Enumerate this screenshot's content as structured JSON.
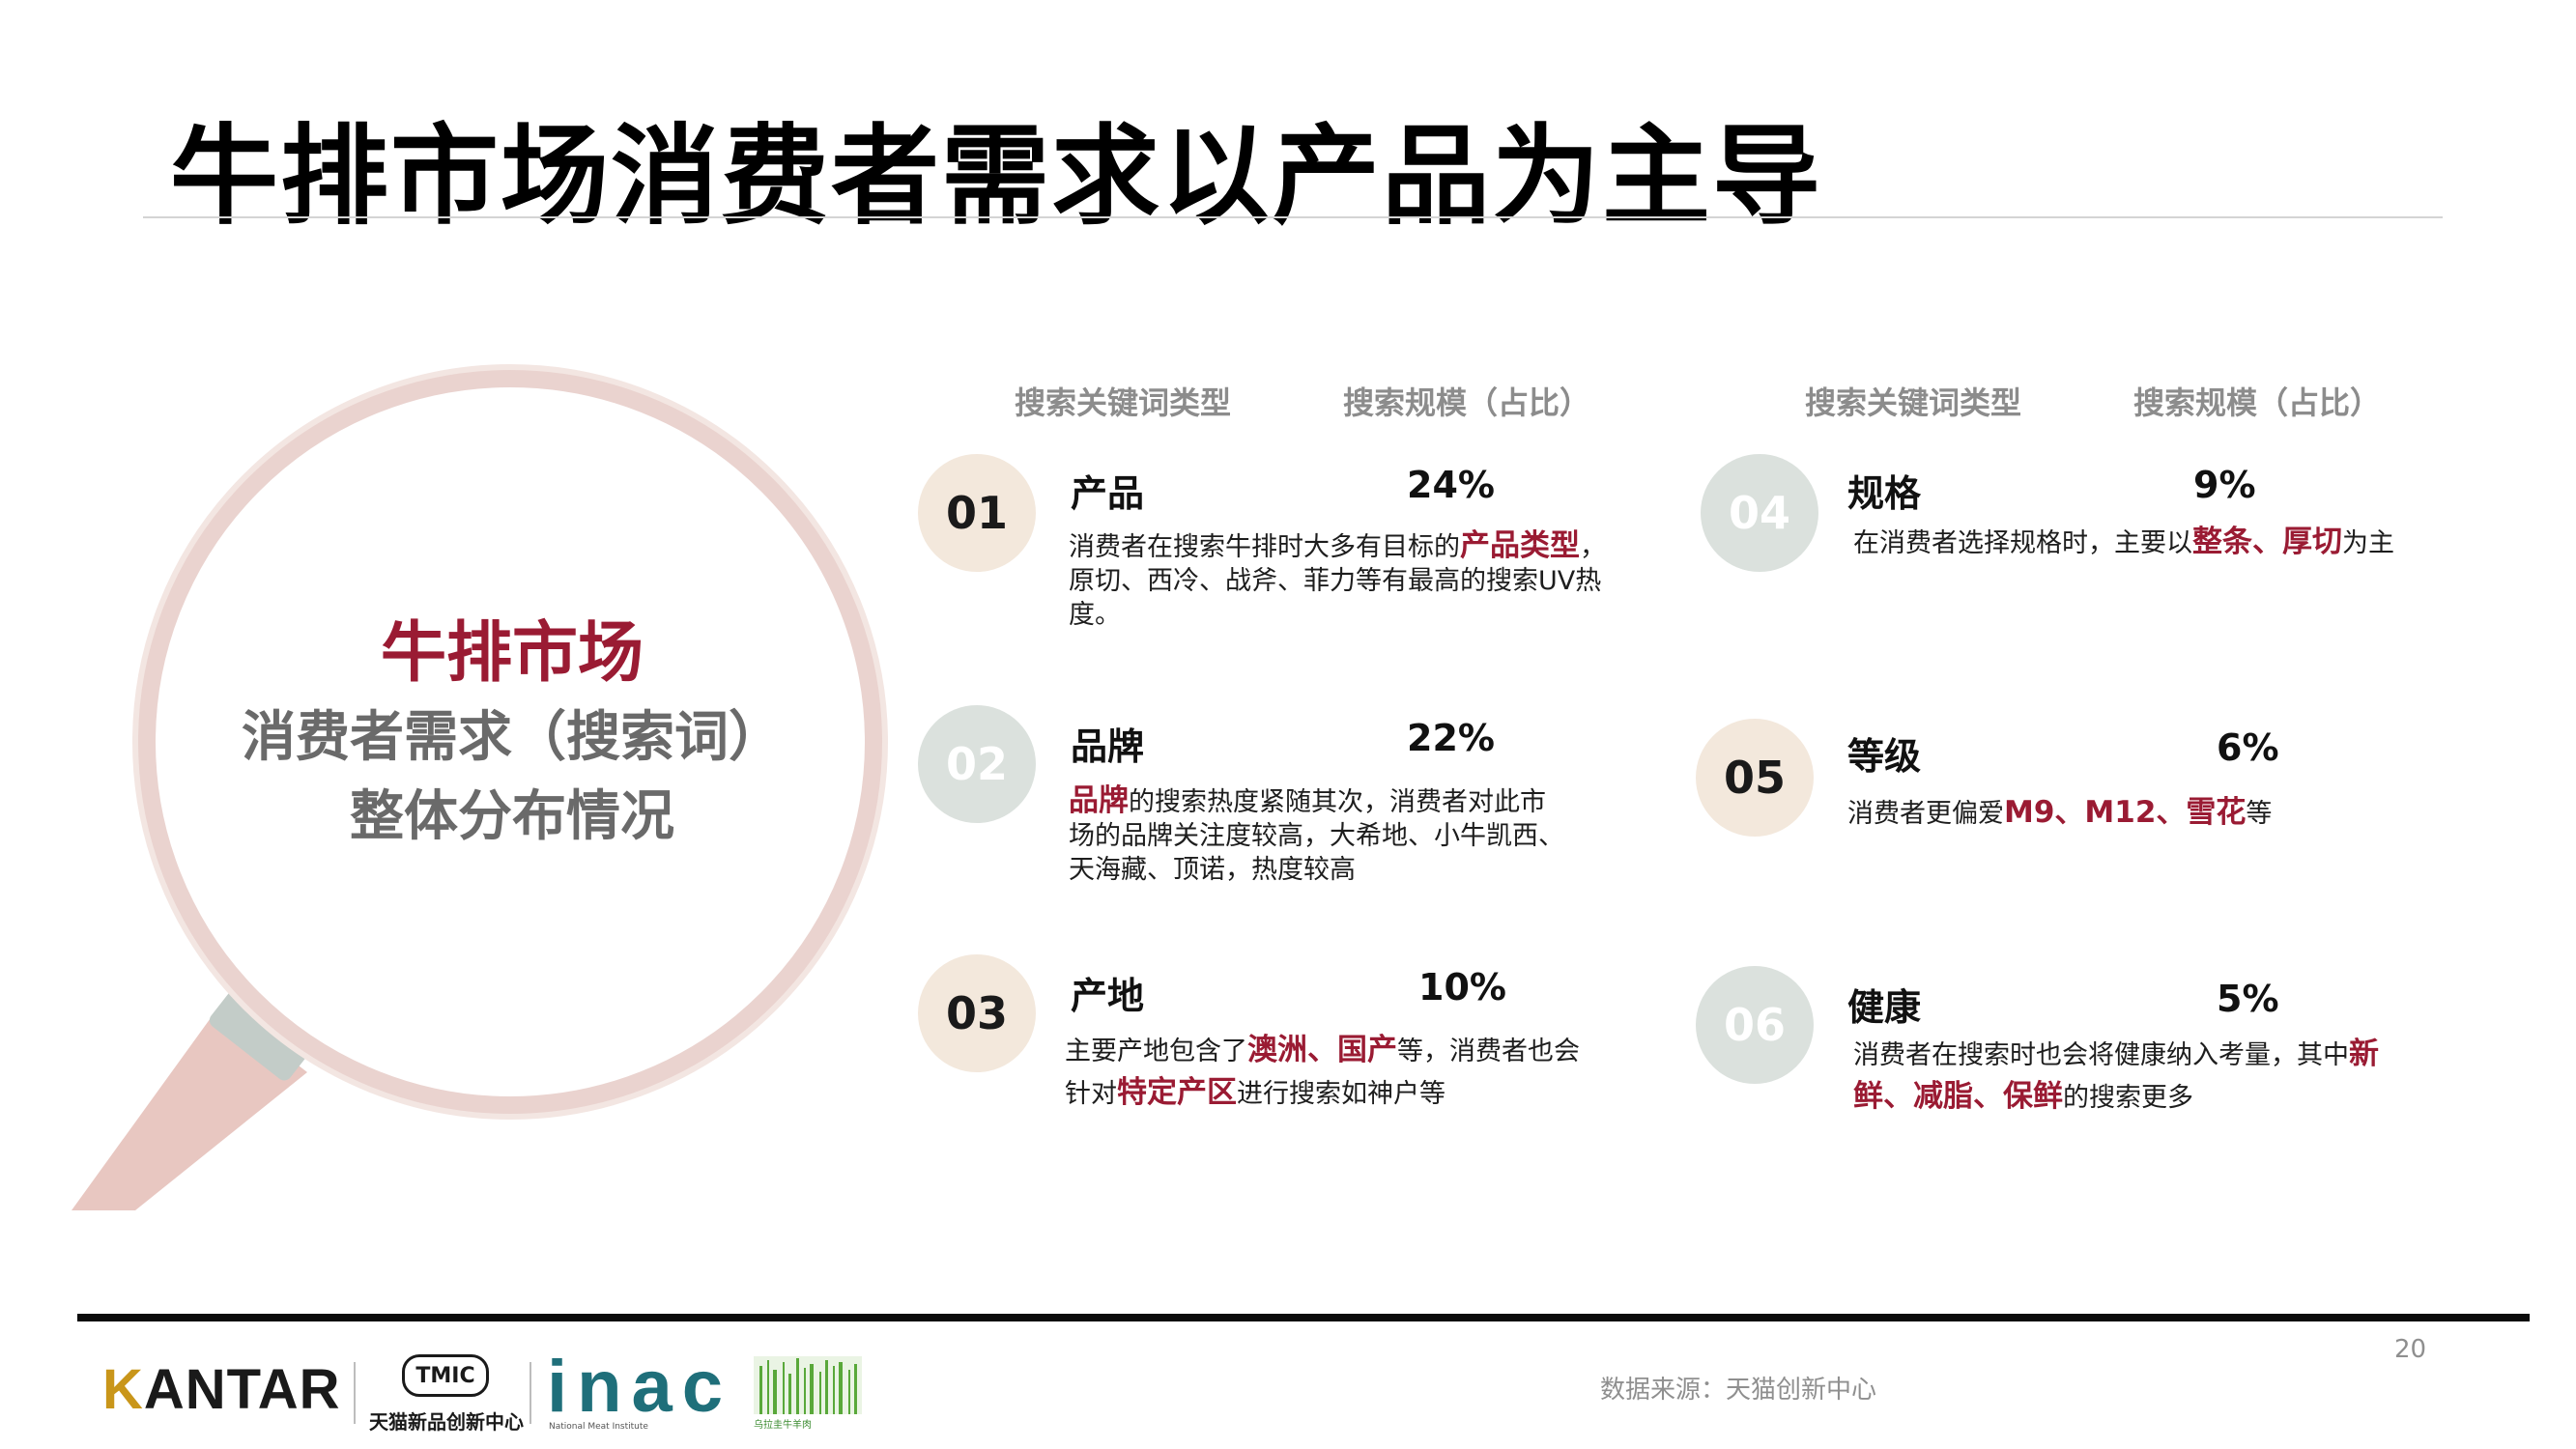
{
  "page": {
    "title": "牛排市场消费者需求以产品为主导",
    "page_number": "20",
    "source": "数据来源：天猫创新中心"
  },
  "lens": {
    "line1": "牛排市场",
    "line2": "消费者需求（搜索词）",
    "line3": "整体分布情况"
  },
  "columns": {
    "keyword_type": "搜索关键词类型",
    "search_scale": "搜索规模（占比）"
  },
  "items": [
    {
      "num": "01",
      "name": "产品",
      "pct": "24%",
      "desc": [
        {
          "t": "消费者在搜索牛排时大多有目标的"
        },
        {
          "t": "产品类型",
          "h": true
        },
        {
          "t": "，原切、西冷、战斧、菲力等有最高的搜索UV热度。"
        }
      ]
    },
    {
      "num": "02",
      "name": "品牌",
      "pct": "22%",
      "desc": [
        {
          "t": "品牌",
          "h": true
        },
        {
          "t": "的搜索热度紧随其次，消费者对此市场的品牌关注度较高，大希地、小牛凯西、天海藏、顶诺，热度较高"
        }
      ]
    },
    {
      "num": "03",
      "name": "产地",
      "pct": "10%",
      "desc": [
        {
          "t": "主要产地包含了"
        },
        {
          "t": "澳洲、国产",
          "h": true
        },
        {
          "t": "等，消费者也会针对"
        },
        {
          "t": "特定产区",
          "h": true
        },
        {
          "t": "进行搜索如神户等"
        }
      ]
    },
    {
      "num": "04",
      "name": "规格",
      "pct": "9%",
      "desc": [
        {
          "t": "在消费者选择规格时，主要以"
        },
        {
          "t": "整条、厚切",
          "h": true
        },
        {
          "t": "为主"
        }
      ]
    },
    {
      "num": "05",
      "name": "等级",
      "pct": "6%",
      "desc": [
        {
          "t": "消费者更偏爱"
        },
        {
          "t": "M9、M12、雪花",
          "h": true
        },
        {
          "t": "等"
        }
      ]
    },
    {
      "num": "06",
      "name": "健康",
      "pct": "5%",
      "desc": [
        {
          "t": "消费者在搜索时也会将健康纳入考量，其中"
        },
        {
          "t": "新鲜、减脂、保鲜",
          "h": true
        },
        {
          "t": "的搜索更多"
        }
      ]
    }
  ],
  "logos": {
    "kantar": "KANTAR",
    "tmic": "TMIC",
    "tmic_caption": "天猫新品创新中心",
    "inac": "inac",
    "inac_caption": "National Meat Institute",
    "beef_caption": "乌拉圭牛羊肉"
  },
  "colors": {
    "accent": "#9a1b33",
    "badge_beige": "#f3e8dc",
    "badge_grey": "#dbe1dd",
    "lens_ring": "#ead3cf",
    "handle": "#e8c7c1"
  }
}
